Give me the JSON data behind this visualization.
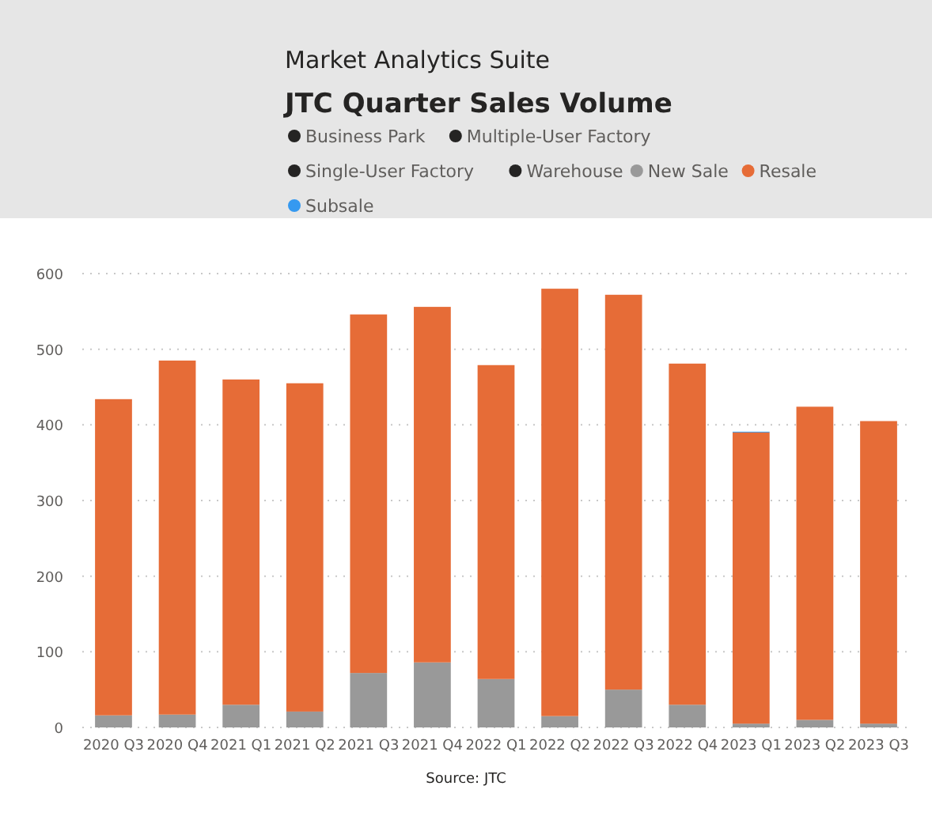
{
  "chart_data": {
    "type": "bar",
    "subtitle": "Market Analytics Suite",
    "title": "JTC Quarter Sales Volume",
    "categories": [
      "2020 Q3",
      "2020 Q4",
      "2021 Q1",
      "2021 Q2",
      "2021 Q3",
      "2021 Q4",
      "2022 Q1",
      "2022 Q2",
      "2022 Q3",
      "2022 Q4",
      "2023 Q1",
      "2023 Q2",
      "2023 Q3"
    ],
    "series": [
      {
        "name": "Business Park",
        "color": "#252423",
        "values": [
          null,
          null,
          null,
          null,
          null,
          null,
          null,
          null,
          null,
          null,
          null,
          null,
          null
        ]
      },
      {
        "name": "Multiple-User Factory",
        "color": "#252423",
        "values": [
          null,
          null,
          null,
          null,
          null,
          null,
          null,
          null,
          null,
          null,
          null,
          null,
          null
        ]
      },
      {
        "name": "Single-User Factory",
        "color": "#252423",
        "values": [
          null,
          null,
          null,
          null,
          null,
          null,
          null,
          null,
          null,
          null,
          null,
          null,
          null
        ]
      },
      {
        "name": "Warehouse",
        "color": "#252423",
        "values": [
          null,
          null,
          null,
          null,
          null,
          null,
          null,
          null,
          null,
          null,
          null,
          null,
          null
        ]
      },
      {
        "name": "New Sale",
        "color": "#999999",
        "values": [
          16,
          17,
          30,
          21,
          72,
          86,
          64,
          15,
          50,
          30,
          5,
          10,
          5
        ]
      },
      {
        "name": "Resale",
        "color": "#e66c37",
        "values": [
          418,
          468,
          430,
          434,
          474,
          470,
          415,
          565,
          522,
          451,
          385,
          414,
          400
        ]
      },
      {
        "name": "Subsale",
        "color": "#3599f0",
        "values": [
          0,
          0,
          0,
          0,
          0,
          0,
          0,
          0,
          0,
          0,
          1,
          0,
          0
        ]
      }
    ],
    "stacked": true,
    "ylim": [
      0,
      600
    ],
    "yticks": [
      0,
      100,
      200,
      300,
      400,
      500,
      600
    ],
    "grid": "y",
    "legend": "top",
    "annotations": [
      "Source: JTC"
    ]
  }
}
